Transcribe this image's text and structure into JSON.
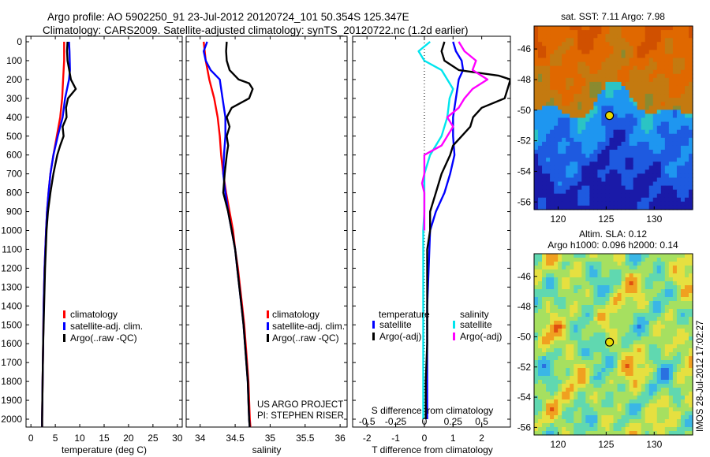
{
  "header": {
    "line1": "Argo profile: AO 5902250_91 23-Jul-2012 20120724_101 50.354S 125.347E",
    "line2": "Climatology: CARS2009. Satellite-adjusted climatology: synTS_20120722.nc (1.2d earlier)"
  },
  "colors": {
    "climatology": "#ff0000",
    "satellite": "#0000ff",
    "argo": "#000000",
    "temp_sat_diff": "#0000ff",
    "sal_sat_diff": "#00e5ee",
    "sal_argo_diff": "#ff00ff"
  },
  "project_note": {
    "line1": "US ARGO PROJECT",
    "line2": "PI: STEPHEN RISER"
  },
  "watermark": "IMOS 28-Jul-2012 17:02:27",
  "chart_data": [
    {
      "id": "temperature",
      "type": "line",
      "xlabel": "temperature (deg C)",
      "ylim": [
        2050,
        0
      ],
      "xlim": [
        -1,
        31
      ],
      "xticks": [
        "0",
        "5",
        "10",
        "15",
        "20",
        "25",
        "30"
      ],
      "xtick_values": [
        0,
        5,
        10,
        15,
        20,
        25,
        30
      ],
      "yticks": [
        "0",
        "100",
        "200",
        "300",
        "400",
        "500",
        "600",
        "700",
        "800",
        "900",
        "1000",
        "1100",
        "1200",
        "1300",
        "1400",
        "1500",
        "1600",
        "1700",
        "1800",
        "1900",
        "2000"
      ],
      "ytick_values": [
        0,
        100,
        200,
        300,
        400,
        500,
        600,
        700,
        800,
        900,
        1000,
        1100,
        1200,
        1300,
        1400,
        1500,
        1600,
        1700,
        1800,
        1900,
        2000
      ],
      "legend": [
        "climatology",
        "satellite-adj. clim.",
        "Argo(..raw -QC)"
      ],
      "series": [
        {
          "name": "climatology",
          "color_key": "climatology",
          "depth": [
            0,
            100,
            200,
            300,
            400,
            500,
            600,
            700,
            800,
            900,
            1000,
            1200,
            1400,
            1600,
            1800,
            2000,
            2050
          ],
          "values": [
            6.8,
            6.8,
            6.6,
            6.4,
            6.0,
            5.3,
            4.6,
            4.0,
            3.6,
            3.3,
            3.1,
            2.8,
            2.6,
            2.5,
            2.4,
            2.3,
            2.3
          ]
        },
        {
          "name": "satellite-adj. clim.",
          "color_key": "satellite",
          "depth": [
            0,
            50,
            150,
            200,
            250,
            300,
            400,
            500,
            600,
            700,
            800,
            900,
            1000,
            1200,
            1400,
            1600,
            1800,
            2000,
            2050
          ],
          "values": [
            7.8,
            7.9,
            8.0,
            7.8,
            7.4,
            7.0,
            6.5,
            5.5,
            4.6,
            4.0,
            3.6,
            3.3,
            3.1,
            2.8,
            2.6,
            2.5,
            2.4,
            2.3,
            2.3
          ]
        },
        {
          "name": "Argo(..raw -QC)",
          "color_key": "argo",
          "depth": [
            0,
            50,
            100,
            200,
            250,
            300,
            350,
            400,
            450,
            500,
            550,
            600,
            650,
            700,
            800,
            900,
            1000,
            1200,
            1400,
            1600,
            1800,
            2000,
            2050
          ],
          "values": [
            7.5,
            7.4,
            7.5,
            8.2,
            9.2,
            7.6,
            7.2,
            7.3,
            6.5,
            6.7,
            6.0,
            5.4,
            5.0,
            4.6,
            4.0,
            3.5,
            3.2,
            2.9,
            2.7,
            2.5,
            2.4,
            2.3,
            2.3
          ]
        }
      ]
    },
    {
      "id": "salinity",
      "type": "line",
      "xlabel": "salinity",
      "ylim": [
        2050,
        0
      ],
      "xlim": [
        33.8,
        36.1
      ],
      "xticks": [
        "34",
        "34.5",
        "35",
        "35.5",
        "36"
      ],
      "xtick_values": [
        34,
        34.5,
        35,
        35.5,
        36
      ],
      "legend": [
        "climatology",
        "satellite-adj. clim.",
        "Argo(..raw -QC)"
      ],
      "series": [
        {
          "name": "climatology",
          "color_key": "climatology",
          "depth": [
            0,
            100,
            200,
            300,
            400,
            500,
            600,
            700,
            800,
            900,
            1000,
            1100,
            1200,
            1300,
            1400,
            1500,
            1600,
            1700,
            1800,
            1900,
            2000,
            2050
          ],
          "values": [
            34.05,
            34.08,
            34.13,
            34.2,
            34.25,
            34.28,
            34.3,
            34.33,
            34.37,
            34.42,
            34.47,
            34.5,
            34.54,
            34.57,
            34.6,
            34.63,
            34.65,
            34.67,
            34.69,
            34.7,
            34.71,
            34.72
          ]
        },
        {
          "name": "satellite-adj. clim.",
          "color_key": "satellite",
          "depth": [
            0,
            50,
            100,
            150,
            200,
            300,
            400,
            500,
            600,
            700,
            800,
            900,
            1000,
            1100,
            1200,
            1300,
            1400,
            1500,
            1600,
            1700,
            1800,
            1900,
            2000,
            2050
          ],
          "values": [
            34.1,
            34.05,
            34.08,
            34.15,
            34.28,
            34.32,
            34.36,
            34.36,
            34.34,
            34.33,
            34.36,
            34.4,
            34.45,
            34.5,
            34.53,
            34.56,
            34.59,
            34.62,
            34.64,
            34.66,
            34.68,
            34.69,
            34.7,
            34.71
          ]
        },
        {
          "name": "Argo(..raw -QC)",
          "color_key": "argo",
          "depth": [
            0,
            50,
            100,
            150,
            200,
            220,
            250,
            300,
            350,
            400,
            450,
            500,
            550,
            600,
            700,
            800,
            900,
            1000,
            1100,
            1200,
            1300,
            1400,
            1500,
            1600,
            1700,
            1800,
            1900,
            2000,
            2050
          ],
          "values": [
            34.38,
            34.37,
            34.38,
            34.42,
            34.55,
            34.7,
            34.75,
            34.7,
            34.45,
            34.38,
            34.42,
            34.38,
            34.4,
            34.38,
            34.35,
            34.33,
            34.4,
            34.45,
            34.5,
            34.53,
            34.56,
            34.59,
            34.62,
            34.64,
            34.66,
            34.68,
            34.69,
            34.7,
            34.71
          ]
        }
      ]
    },
    {
      "id": "difference",
      "type": "line",
      "xlabel": "T difference from climatology",
      "top_label": "S difference from climatology",
      "ylim": [
        2050,
        0
      ],
      "xlim": [
        -2.5,
        3.0
      ],
      "xticks": [
        "-2",
        "-1",
        "0",
        "1",
        "2"
      ],
      "xtick_values": [
        -2,
        -1,
        0,
        1,
        2
      ],
      "s_scale_ticks": [
        "-0.5",
        "-0.25",
        "0",
        "0.25",
        "0.5"
      ],
      "s_scale_values": [
        -0.5,
        -0.25,
        0,
        0.25,
        0.5
      ],
      "legend_temperature": {
        "title": "temperature",
        "items": [
          "satellite",
          "Argo(-adj)"
        ]
      },
      "legend_salinity": {
        "title": "salinity",
        "items": [
          "satellite",
          "Argo(-adj)"
        ]
      },
      "series": [
        {
          "name": "satellite",
          "quantity": "temperature",
          "color_key": "temp_sat_diff",
          "depth": [
            0,
            50,
            100,
            150,
            200,
            300,
            400,
            500,
            600,
            700,
            800,
            900,
            1000,
            1200,
            1400,
            1600,
            1800,
            2000
          ],
          "values": [
            1.0,
            1.1,
            1.3,
            1.35,
            1.2,
            1.1,
            1.0,
            1.0,
            1.05,
            0.9,
            0.7,
            0.4,
            0.2,
            0.15,
            0.1,
            0.1,
            0.1,
            0.1
          ]
        },
        {
          "name": "Argo(-adj)",
          "quantity": "temperature",
          "color_key": "argo",
          "depth": [
            0,
            50,
            100,
            150,
            180,
            200,
            250,
            300,
            350,
            400,
            450,
            500,
            550,
            600,
            700,
            800,
            900,
            1000,
            1100,
            1200,
            1400,
            1600,
            1800,
            2000
          ],
          "values": [
            0.7,
            0.6,
            0.7,
            1.2,
            2.6,
            3.0,
            2.9,
            2.8,
            2.0,
            1.7,
            1.6,
            1.3,
            1.0,
            0.9,
            0.6,
            0.4,
            0.2,
            0.2,
            0.1,
            0.1,
            0.1,
            0.1,
            0.05,
            0.05
          ]
        },
        {
          "name": "satellite",
          "quantity": "salinity",
          "color_key": "sal_sat_diff",
          "depth": [
            0,
            50,
            100,
            150,
            200,
            250,
            300,
            400,
            500,
            600,
            700,
            800,
            900,
            1000,
            1200,
            1400,
            1600,
            1800,
            2000
          ],
          "values": [
            0.05,
            -0.05,
            0.0,
            0.15,
            0.2,
            0.25,
            0.22,
            0.2,
            0.15,
            0.05,
            0.0,
            0.0,
            0.0,
            -0.01,
            -0.01,
            -0.01,
            -0.01,
            -0.01,
            -0.01
          ]
        },
        {
          "name": "Argo(-adj)",
          "quantity": "salinity",
          "color_key": "sal_argo_diff",
          "depth": [
            0,
            50,
            100,
            150,
            200,
            250,
            300,
            350,
            400,
            450,
            500,
            550,
            600,
            650,
            700,
            750,
            800,
            900,
            1000
          ],
          "values": [
            0.3,
            0.35,
            0.45,
            0.42,
            0.55,
            0.42,
            0.35,
            0.3,
            0.2,
            0.25,
            0.2,
            0.15,
            0.0,
            0.0,
            0.0,
            -0.02,
            0.0,
            0.0,
            0.0
          ]
        }
      ]
    },
    {
      "id": "sst_map",
      "type": "heatmap",
      "title": "sat. SST: 7.11  Argo: 7.98",
      "xticks": [
        "120",
        "125",
        "130"
      ],
      "xtick_values": [
        120,
        125,
        130
      ],
      "yticks": [
        "-46",
        "-48",
        "-50",
        "-52",
        "-54",
        "-56"
      ],
      "ytick_values": [
        -46,
        -48,
        -50,
        -52,
        -54,
        -56
      ],
      "xlim": [
        117.5,
        134
      ],
      "ylim": [
        -56.5,
        -44.5
      ],
      "marker": {
        "lon": 125.347,
        "lat": -50.354
      },
      "palette": [
        "#1a1aa8",
        "#1e5ae0",
        "#1e96f0",
        "#2bc4c4",
        "#4ac07a",
        "#8a8a30",
        "#c47a10",
        "#e06800",
        "#d05000"
      ]
    },
    {
      "id": "sla_map",
      "type": "heatmap",
      "title_line1": "Altim. SLA: 0.12",
      "title_line2": "Argo h1000: 0.096 h2000: 0.14",
      "xticks": [
        "120",
        "125",
        "130"
      ],
      "xtick_values": [
        120,
        125,
        130
      ],
      "yticks": [
        "-46",
        "-48",
        "-50",
        "-52",
        "-54",
        "-56"
      ],
      "ytick_values": [
        -46,
        -48,
        -50,
        -52,
        -54,
        -56
      ],
      "xlim": [
        117.5,
        134
      ],
      "ylim": [
        -56.5,
        -44.5
      ],
      "marker": {
        "lon": 125.347,
        "lat": -50.354
      },
      "palette": [
        "#1a2aa0",
        "#2a70e0",
        "#3ab6e6",
        "#60d8b0",
        "#a6e060",
        "#e6e040",
        "#f0a020",
        "#e05010"
      ]
    }
  ]
}
